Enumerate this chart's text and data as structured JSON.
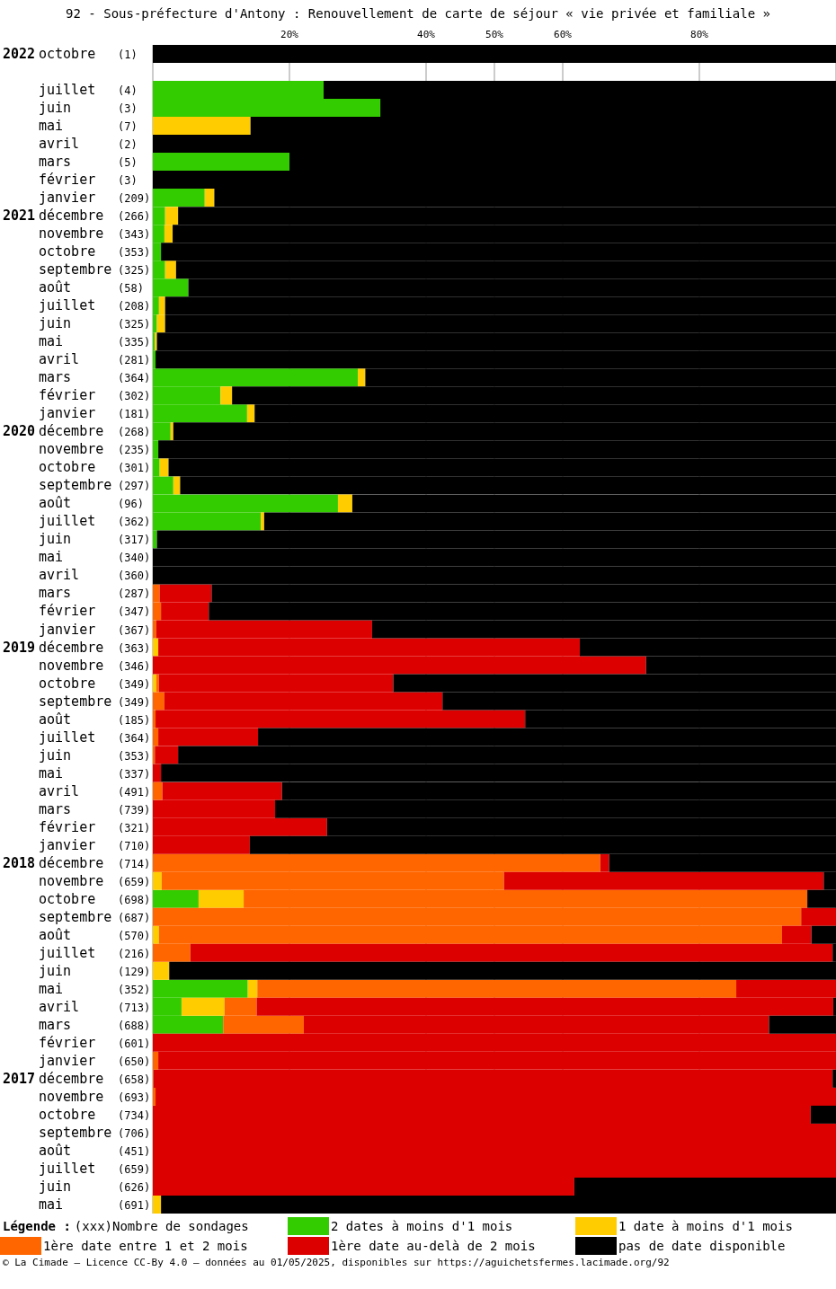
{
  "chart_data": {
    "type": "bar",
    "orientation": "horizontal",
    "stacked": true,
    "title": "92 - Sous-préfecture d'Antony : Renouvellement de carte de séjour « vie privée et familiale »",
    "categories": [
      "2022 octobre (1)",
      null,
      "juillet (4)",
      "juin (3)",
      "mai (7)",
      "avril (2)",
      "mars (5)",
      "février (3)",
      "janvier (209)",
      "2021 décembre (266)",
      "novembre (343)",
      "octobre (353)",
      "septembre (325)",
      "août (58)",
      "juillet (208)",
      "juin (325)",
      "mai (335)",
      "avril (281)",
      "mars (364)",
      "février (302)",
      "janvier (181)",
      "2020 décembre (268)",
      "novembre (235)",
      "octobre (301)",
      "septembre (297)",
      "août (96)",
      "juillet (362)",
      "juin (317)",
      "mai (340)",
      "avril (360)",
      "mars (287)",
      "février (347)",
      "janvier (367)",
      "2019 décembre (363)",
      "novembre (346)",
      "octobre (349)",
      "septembre (349)",
      "août (185)",
      "juillet (364)",
      "juin (353)",
      "mai (337)",
      "avril (491)",
      "mars (739)",
      "février (321)",
      "janvier (710)",
      "2018 décembre (714)",
      "novembre (659)",
      "octobre (698)",
      "septembre (687)",
      "août (570)",
      "juillet (216)",
      "juin (129)",
      "mai (352)",
      "avril (713)",
      "mars (688)",
      "février (601)",
      "janvier (650)",
      "2017 décembre (658)",
      "novembre (693)",
      "octobre (734)",
      "septembre (706)",
      "août (451)",
      "juillet (659)",
      "juin (626)",
      "mai (691)"
    ],
    "series": [
      {
        "name": "2 dates à moins d'1 mois",
        "color": "#33cc00",
        "values": [
          0,
          null,
          25,
          33.3,
          0,
          0,
          20,
          0,
          7.6,
          1.8,
          1.7,
          1.2,
          1.8,
          5.2,
          0.9,
          0.6,
          0.3,
          0.4,
          30,
          9.9,
          13.8,
          2.6,
          0.8,
          1,
          3,
          27.1,
          15.8,
          0.6,
          0,
          0,
          0,
          0,
          0,
          0,
          0,
          0,
          0,
          0,
          0,
          0,
          0,
          0,
          0,
          0,
          0,
          0,
          0,
          6.7,
          0,
          0,
          0,
          0,
          13.9,
          4.2,
          10.3,
          0,
          0,
          0,
          0,
          0,
          0,
          0,
          0,
          0,
          0
        ]
      },
      {
        "name": "1 date à moins d'1 mois",
        "color": "#ffcc00",
        "values": [
          0,
          null,
          0,
          0,
          14.3,
          0,
          0,
          0,
          1.4,
          1.9,
          1.2,
          0,
          1.6,
          0,
          0.9,
          1.2,
          0.3,
          0,
          1.1,
          1.7,
          1.1,
          0.4,
          0,
          1.3,
          1,
          2.1,
          0.5,
          0,
          0,
          0,
          0,
          0,
          0,
          0.8,
          0,
          0.5,
          0,
          0,
          0,
          0,
          0,
          0,
          0,
          0,
          0,
          0,
          1.3,
          6.6,
          0,
          0.9,
          0,
          2.4,
          1.4,
          6.3,
          0,
          0,
          0,
          0,
          0,
          0,
          0,
          0,
          0,
          0,
          1.2
        ]
      },
      {
        "name": "1ère date entre 1 et 2 mois",
        "color": "#ff6600",
        "values": [
          0,
          null,
          0,
          0,
          0,
          0,
          0,
          0,
          0,
          0,
          0,
          0,
          0,
          0,
          0,
          0,
          0,
          0,
          0,
          0,
          0,
          0,
          0,
          0,
          0,
          0,
          0,
          0,
          0,
          0,
          1,
          1.2,
          0.5,
          0,
          0,
          0.4,
          1.7,
          0.4,
          0.8,
          0.3,
          0,
          1.4,
          0,
          0,
          0,
          65.5,
          50.1,
          82.5,
          94.9,
          91.2,
          5.5,
          0,
          70.1,
          4.7,
          11.8,
          0,
          0.8,
          0.1,
          0.4,
          0,
          0,
          0,
          0,
          0,
          0
        ]
      },
      {
        "name": "1ère date au-delà de 2 mois",
        "color": "#dd0000",
        "values": [
          0,
          null,
          0,
          0,
          0,
          0,
          0,
          0,
          0,
          0,
          0,
          0,
          0,
          0,
          0,
          0,
          0,
          0,
          0,
          0,
          0,
          0,
          0,
          0,
          0,
          0,
          0,
          0,
          0,
          0,
          7.6,
          7,
          31.6,
          61.7,
          72.2,
          34.3,
          40.7,
          54.1,
          14.6,
          3.4,
          1.2,
          17.5,
          17.9,
          25.5,
          14.2,
          1.3,
          46.8,
          0,
          5.1,
          4.3,
          94,
          0,
          14.6,
          84.4,
          68.1,
          100,
          99.2,
          99.4,
          99.6,
          96.3,
          100,
          100,
          100,
          61.7,
          0
        ]
      },
      {
        "name": "pas de date disponible",
        "color": "#000000",
        "values": [
          100,
          null,
          75,
          66.7,
          85.7,
          100,
          80,
          100,
          91,
          96.3,
          97.1,
          98.8,
          96.6,
          94.8,
          98.2,
          98.2,
          99.4,
          99.6,
          68.9,
          88.4,
          85.1,
          97,
          99.2,
          97.7,
          96,
          70.8,
          83.7,
          99.4,
          100,
          100,
          91.4,
          91.8,
          67.9,
          37.5,
          27.8,
          64.8,
          57.6,
          45.5,
          84.6,
          96.3,
          98.8,
          81.1,
          82.1,
          74.5,
          85.8,
          33.2,
          1.8,
          4.2,
          0,
          3.6,
          0.5,
          97.6,
          0,
          0.4,
          9.8,
          0,
          0,
          0.5,
          0,
          3.7,
          0,
          0,
          0,
          38.3,
          98.8
        ]
      }
    ],
    "xlim": [
      0,
      100
    ],
    "xticks": [
      {
        "value": 20,
        "label": "20%"
      },
      {
        "value": 40,
        "label": "40%"
      },
      {
        "value": 50,
        "label": "50%"
      },
      {
        "value": 60,
        "label": "60%"
      },
      {
        "value": 80,
        "label": "80%"
      }
    ],
    "grid": "x",
    "legend": "bottom",
    "legend_title": "Légende :",
    "annotations": [
      "(xxx)Nombre de sondages",
      "© La Cimade – Licence CC-By 4.0 – données au 01/05/2025, disponibles sur https://aguichetsfermes.lacimade.org/92"
    ]
  }
}
